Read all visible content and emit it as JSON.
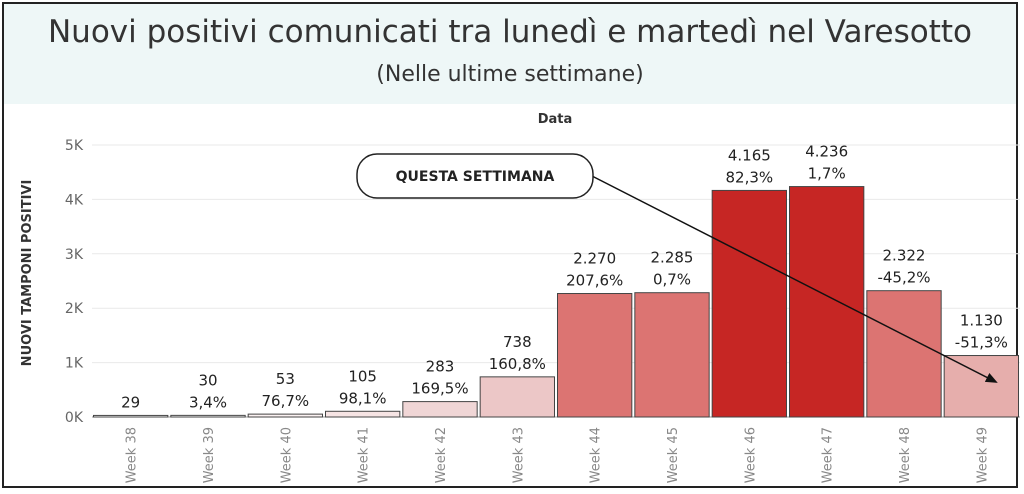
{
  "header": {
    "title": "Nuovi positivi comunicati tra lunedì e martedì nel Varesotto",
    "subtitle": "(Nelle ultime settimane)"
  },
  "annotation": {
    "label": "QUESTA SETTIMANA"
  },
  "chart_data": {
    "type": "bar",
    "title": "Nuovi positivi comunicati tra lunedì e martedì nel Varesotto",
    "subtitle": "(Nelle ultime settimane)",
    "xlabel": "Data",
    "ylabel": "NUOVI TAMPONI POSITIVI",
    "ylim": [
      0,
      5000
    ],
    "yticks": [
      0,
      1000,
      2000,
      3000,
      4000,
      5000
    ],
    "ytick_labels": [
      "0K",
      "1K",
      "2K",
      "3K",
      "4K",
      "5K"
    ],
    "grid": true,
    "categories": [
      "Week 38",
      "Week 39",
      "Week 40",
      "Week 41",
      "Week 42",
      "Week 43",
      "Week 44",
      "Week 45",
      "Week 46",
      "Week 47",
      "Week 48",
      "Week 49"
    ],
    "values": [
      29,
      30,
      53,
      105,
      283,
      738,
      2270,
      2285,
      4165,
      4236,
      2322,
      1130
    ],
    "value_labels": [
      "29",
      "30",
      "53",
      "105",
      "283",
      "738",
      "2.270",
      "2.285",
      "4.165",
      "4.236",
      "2.322",
      "1.130"
    ],
    "pct_labels": [
      "",
      "3,4%",
      "76,7%",
      "98,1%",
      "169,5%",
      "160,8%",
      "207,6%",
      "0,7%",
      "82,3%",
      "1,7%",
      "-45,2%",
      "-51,3%"
    ],
    "colors": [
      "#ffffff",
      "#ffffff",
      "#fbf2f2",
      "#f6e4e4",
      "#f0d6d6",
      "#ecc7c7",
      "#dc7472",
      "#dc7472",
      "#c62624",
      "#c62624",
      "#dc7472",
      "#e6aeac"
    ]
  }
}
